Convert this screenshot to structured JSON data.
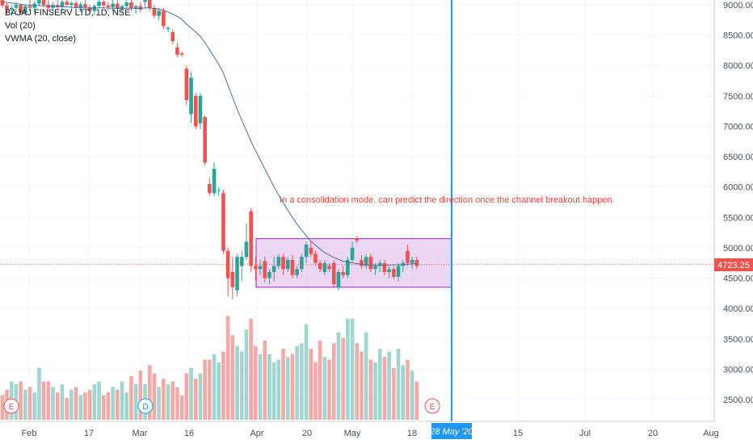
{
  "header": {
    "symbol": "BAJAJ FINSERV LTD, 1D, NSE",
    "indicator_vol": "Vol (20)",
    "indicator_vwma": "VWMA (20, close)"
  },
  "annotation": {
    "text": "In a consolidation mode. can predict the direction once the channel breakout happen."
  },
  "price_label": "4723.25",
  "date_label": "28 May '20",
  "event_markers": [
    {
      "label": "E",
      "date": "Jan 28"
    },
    {
      "label": "D",
      "date": "Mar 3"
    },
    {
      "label": "E",
      "date": "May 28"
    }
  ],
  "chart_data": {
    "type": "candlestick",
    "price_ticks": [
      "9000.00",
      "8500.00",
      "8000.00",
      "7500.00",
      "7000.00",
      "6500.00",
      "6000.00",
      "5500.00",
      "5000.00",
      "4500.00",
      "4000.00",
      "3500.00",
      "3000.00",
      "2500.00"
    ],
    "time_ticks": [
      "Feb",
      "17",
      "Mar",
      "16",
      "Apr",
      "20",
      "May",
      "18",
      "28 May '20",
      "15",
      "Jul",
      "20",
      "Aug"
    ],
    "current_price": 4723.25,
    "consolidation_box": {
      "price_high": 5150,
      "price_low": 4350
    },
    "colors": {
      "up": "#26a69a",
      "down": "#ef5350",
      "up_vol": "#9fd6d0",
      "down_vol": "#f4a9a7",
      "vwma": "#4a6fa5",
      "box_fill": "#e6c8ef",
      "box_border": "#9c27b0",
      "line": "#2196f3",
      "annotation": "#f44336"
    },
    "candles": [
      {
        "o": 9080,
        "h": 9120,
        "l": 8950,
        "c": 8990,
        "v": 2450
      },
      {
        "o": 8990,
        "h": 9030,
        "l": 8850,
        "c": 8920,
        "v": 2550
      },
      {
        "o": 8920,
        "h": 9000,
        "l": 8820,
        "c": 8950,
        "v": 2700
      },
      {
        "o": 8950,
        "h": 9050,
        "l": 8880,
        "c": 9000,
        "v": 2650
      },
      {
        "o": 9000,
        "h": 9020,
        "l": 8840,
        "c": 8870,
        "v": 2700
      },
      {
        "o": 8870,
        "h": 9000,
        "l": 8820,
        "c": 8980,
        "v": 2550
      },
      {
        "o": 8980,
        "h": 9080,
        "l": 8900,
        "c": 8950,
        "v": 2600
      },
      {
        "o": 8950,
        "h": 9060,
        "l": 8880,
        "c": 9020,
        "v": 2500
      },
      {
        "o": 9020,
        "h": 9200,
        "l": 8980,
        "c": 9150,
        "v": 2950
      },
      {
        "o": 9150,
        "h": 9180,
        "l": 8960,
        "c": 9000,
        "v": 2700
      },
      {
        "o": 9000,
        "h": 9100,
        "l": 8900,
        "c": 8950,
        "v": 2700
      },
      {
        "o": 8950,
        "h": 9050,
        "l": 8880,
        "c": 9000,
        "v": 2600
      },
      {
        "o": 9000,
        "h": 9080,
        "l": 8920,
        "c": 8960,
        "v": 2500
      },
      {
        "o": 8960,
        "h": 9100,
        "l": 8900,
        "c": 9050,
        "v": 2650
      },
      {
        "o": 9050,
        "h": 9120,
        "l": 8980,
        "c": 9000,
        "v": 2400
      },
      {
        "o": 9000,
        "h": 9060,
        "l": 8900,
        "c": 9030,
        "v": 2550
      },
      {
        "o": 9030,
        "h": 9070,
        "l": 8900,
        "c": 8950,
        "v": 2600
      },
      {
        "o": 8950,
        "h": 9050,
        "l": 8880,
        "c": 9010,
        "v": 2450
      },
      {
        "o": 9010,
        "h": 9080,
        "l": 8920,
        "c": 8960,
        "v": 2500
      },
      {
        "o": 8960,
        "h": 9000,
        "l": 8850,
        "c": 8900,
        "v": 2550
      },
      {
        "o": 8900,
        "h": 9010,
        "l": 8830,
        "c": 8980,
        "v": 2650
      },
      {
        "o": 8980,
        "h": 9100,
        "l": 8950,
        "c": 9050,
        "v": 2700
      },
      {
        "o": 9050,
        "h": 9120,
        "l": 8950,
        "c": 8990,
        "v": 2450
      },
      {
        "o": 8990,
        "h": 9050,
        "l": 8900,
        "c": 8960,
        "v": 2500
      },
      {
        "o": 8960,
        "h": 9080,
        "l": 8900,
        "c": 9020,
        "v": 2600
      },
      {
        "o": 9020,
        "h": 9100,
        "l": 8900,
        "c": 8940,
        "v": 2550
      },
      {
        "o": 8940,
        "h": 9000,
        "l": 8860,
        "c": 8980,
        "v": 2700
      },
      {
        "o": 8980,
        "h": 9100,
        "l": 8950,
        "c": 9040,
        "v": 2500
      },
      {
        "o": 9040,
        "h": 9080,
        "l": 8900,
        "c": 8950,
        "v": 2800
      },
      {
        "o": 8950,
        "h": 9000,
        "l": 8850,
        "c": 8980,
        "v": 2650
      },
      {
        "o": 8980,
        "h": 9050,
        "l": 8880,
        "c": 8920,
        "v": 2900
      },
      {
        "o": 9050,
        "h": 9150,
        "l": 8950,
        "c": 9100,
        "v": 2650
      },
      {
        "o": 9100,
        "h": 9180,
        "l": 8900,
        "c": 8950,
        "v": 3000
      },
      {
        "o": 8950,
        "h": 9000,
        "l": 8780,
        "c": 8820,
        "v": 2850
      },
      {
        "o": 8820,
        "h": 8950,
        "l": 8750,
        "c": 8900,
        "v": 2600
      },
      {
        "o": 8900,
        "h": 8950,
        "l": 8600,
        "c": 8650,
        "v": 2750
      },
      {
        "o": 8600,
        "h": 8650,
        "l": 8550,
        "c": 8620,
        "v": 2650
      },
      {
        "o": 8550,
        "h": 8600,
        "l": 8350,
        "c": 8400,
        "v": 2700
      },
      {
        "o": 8300,
        "h": 8380,
        "l": 8140,
        "c": 8180,
        "v": 2600
      },
      {
        "o": 8200,
        "h": 8230,
        "l": 8150,
        "c": 8180,
        "v": 2450
      },
      {
        "o": 7950,
        "h": 8000,
        "l": 7350,
        "c": 7430,
        "v": 2850
      },
      {
        "o": 7200,
        "h": 7900,
        "l": 7050,
        "c": 7800,
        "v": 2950
      },
      {
        "o": 7500,
        "h": 7550,
        "l": 6950,
        "c": 7000,
        "v": 2750
      },
      {
        "o": 7050,
        "h": 7550,
        "l": 6950,
        "c": 7500,
        "v": 2850
      },
      {
        "o": 7150,
        "h": 7180,
        "l": 6350,
        "c": 6400,
        "v": 3100
      },
      {
        "o": 6050,
        "h": 6150,
        "l": 5850,
        "c": 5900,
        "v": 3100
      },
      {
        "o": 5900,
        "h": 6400,
        "l": 5850,
        "c": 6300,
        "v": 3200
      },
      {
        "o": 5950,
        "h": 6000,
        "l": 5850,
        "c": 5950,
        "v": 3050
      },
      {
        "o": 5900,
        "h": 5950,
        "l": 4900,
        "c": 4950,
        "v": 3250
      },
      {
        "o": 4950,
        "h": 5000,
        "l": 4200,
        "c": 4500,
        "v": 3900
      },
      {
        "o": 4600,
        "h": 4850,
        "l": 4150,
        "c": 4350,
        "v": 3550
      },
      {
        "o": 4300,
        "h": 4900,
        "l": 4200,
        "c": 4850,
        "v": 3350
      },
      {
        "o": 4700,
        "h": 4950,
        "l": 4450,
        "c": 4850,
        "v": 3250
      },
      {
        "o": 4850,
        "h": 5400,
        "l": 4800,
        "c": 5100,
        "v": 3650
      },
      {
        "o": 5600,
        "h": 5650,
        "l": 4600,
        "c": 4700,
        "v": 3850
      },
      {
        "o": 4700,
        "h": 4850,
        "l": 4450,
        "c": 4650,
        "v": 3350
      },
      {
        "o": 4650,
        "h": 4800,
        "l": 4550,
        "c": 4700,
        "v": 3200
      },
      {
        "o": 4780,
        "h": 4850,
        "l": 4430,
        "c": 4500,
        "v": 3450
      },
      {
        "o": 4500,
        "h": 4650,
        "l": 4400,
        "c": 4600,
        "v": 3200
      },
      {
        "o": 4600,
        "h": 4850,
        "l": 4450,
        "c": 4700,
        "v": 3050
      },
      {
        "o": 4700,
        "h": 4900,
        "l": 4650,
        "c": 4850,
        "v": 3100
      },
      {
        "o": 4850,
        "h": 4900,
        "l": 4550,
        "c": 4650,
        "v": 3300
      },
      {
        "o": 4650,
        "h": 4850,
        "l": 4600,
        "c": 4800,
        "v": 3150
      },
      {
        "o": 4800,
        "h": 4880,
        "l": 4500,
        "c": 4550,
        "v": 3200
      },
      {
        "o": 4550,
        "h": 4700,
        "l": 4500,
        "c": 4650,
        "v": 3350
      },
      {
        "o": 4650,
        "h": 4900,
        "l": 4600,
        "c": 4850,
        "v": 3400
      },
      {
        "o": 4850,
        "h": 5100,
        "l": 4750,
        "c": 5050,
        "v": 3750
      },
      {
        "o": 5000,
        "h": 5100,
        "l": 4850,
        "c": 4900,
        "v": 3300
      },
      {
        "o": 4900,
        "h": 4950,
        "l": 4700,
        "c": 4750,
        "v": 3050
      },
      {
        "o": 4750,
        "h": 4800,
        "l": 4600,
        "c": 4650,
        "v": 3450
      },
      {
        "o": 4600,
        "h": 4800,
        "l": 4550,
        "c": 4750,
        "v": 3150
      },
      {
        "o": 4700,
        "h": 4750,
        "l": 4600,
        "c": 4650,
        "v": 3100
      },
      {
        "o": 4750,
        "h": 4800,
        "l": 4350,
        "c": 4400,
        "v": 3400
      },
      {
        "o": 4350,
        "h": 4650,
        "l": 4300,
        "c": 4600,
        "v": 3600
      },
      {
        "o": 4600,
        "h": 4700,
        "l": 4500,
        "c": 4550,
        "v": 3500
      },
      {
        "o": 4550,
        "h": 4850,
        "l": 4500,
        "c": 4800,
        "v": 3850
      },
      {
        "o": 4800,
        "h": 5100,
        "l": 4750,
        "c": 5000,
        "v": 3850
      },
      {
        "o": 5150,
        "h": 5200,
        "l": 5080,
        "c": 5120,
        "v": 3400
      },
      {
        "o": 4800,
        "h": 4880,
        "l": 4650,
        "c": 4700,
        "v": 3250
      },
      {
        "o": 4700,
        "h": 4900,
        "l": 4650,
        "c": 4850,
        "v": 3600
      },
      {
        "o": 4850,
        "h": 4900,
        "l": 4600,
        "c": 4650,
        "v": 3100
      },
      {
        "o": 4650,
        "h": 4750,
        "l": 4550,
        "c": 4700,
        "v": 3050
      },
      {
        "o": 4700,
        "h": 4800,
        "l": 4600,
        "c": 4750,
        "v": 3300
      },
      {
        "o": 4750,
        "h": 4800,
        "l": 4550,
        "c": 4600,
        "v": 3150
      },
      {
        "o": 4600,
        "h": 4700,
        "l": 4500,
        "c": 4650,
        "v": 3250
      },
      {
        "o": 4650,
        "h": 4700,
        "l": 4480,
        "c": 4520,
        "v": 2950
      },
      {
        "o": 4520,
        "h": 4750,
        "l": 4450,
        "c": 4700,
        "v": 3300
      },
      {
        "o": 4700,
        "h": 4800,
        "l": 4600,
        "c": 4750,
        "v": 3000
      },
      {
        "o": 4950,
        "h": 5050,
        "l": 4700,
        "c": 4750,
        "v": 3100
      },
      {
        "o": 4750,
        "h": 4850,
        "l": 4650,
        "c": 4800,
        "v": 2900
      },
      {
        "o": 4800,
        "h": 4850,
        "l": 4650,
        "c": 4700,
        "v": 2700
      }
    ],
    "vwma": [
      9050,
      9040,
      9030,
      9020,
      9010,
      9000,
      8995,
      8990,
      8990,
      8985,
      8980,
      8975,
      8970,
      8970,
      8965,
      8960,
      8955,
      8950,
      8950,
      8945,
      8945,
      8950,
      8950,
      8945,
      8945,
      8940,
      8940,
      8945,
      8945,
      8940,
      8940,
      8950,
      8950,
      8940,
      8930,
      8910,
      8880,
      8850,
      8810,
      8760,
      8680,
      8620,
      8550,
      8480,
      8380,
      8260,
      8140,
      8020,
      7880,
      7680,
      7480,
      7280,
      7100,
      6930,
      6750,
      6600,
      6450,
      6300,
      6150,
      6000,
      5870,
      5740,
      5620,
      5500,
      5390,
      5290,
      5200,
      5110,
      5040,
      4980,
      4920,
      4880,
      4840,
      4810,
      4780,
      4760,
      4750,
      4740,
      4730,
      4720,
      4715,
      4710,
      4710,
      4715,
      4715,
      4720,
      4720,
      4725,
      4730,
      4735,
      4740
    ]
  }
}
